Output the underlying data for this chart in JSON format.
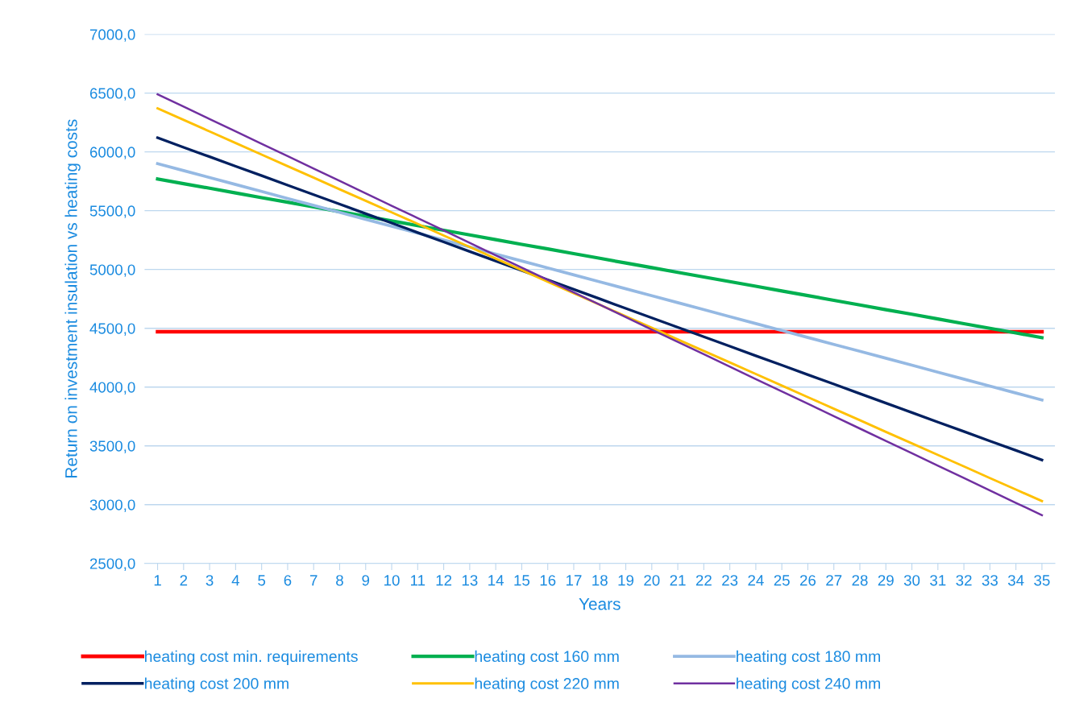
{
  "chart_data": {
    "type": "line",
    "xlabel": "Years",
    "ylabel": "Return on investment insulation vs heating costs",
    "categories": [
      "1",
      "2",
      "3",
      "4",
      "5",
      "6",
      "7",
      "8",
      "9",
      "10",
      "11",
      "12",
      "13",
      "14",
      "15",
      "16",
      "17",
      "18",
      "19",
      "20",
      "21",
      "22",
      "23",
      "24",
      "25",
      "26",
      "27",
      "28",
      "29",
      "30",
      "31",
      "32",
      "33",
      "34",
      "35"
    ],
    "series": [
      {
        "name": "heating cost min. requirements",
        "color": "#ff0000",
        "values": [
          4470,
          4470,
          4470,
          4470,
          4470,
          4470,
          4470,
          4470,
          4470,
          4470,
          4470,
          4470,
          4470,
          4470,
          4470,
          4470,
          4470,
          4470,
          4470,
          4470,
          4470,
          4470,
          4470,
          4470,
          4470,
          4470,
          4470,
          4470,
          4470,
          4470,
          4470,
          4470,
          4470,
          4470,
          4470
        ]
      },
      {
        "name": "heating cost 160 mm",
        "color": "#00b050",
        "values": [
          5770,
          5730,
          5691,
          5651,
          5611,
          5572,
          5532,
          5492,
          5452,
          5413,
          5373,
          5333,
          5294,
          5254,
          5214,
          5175,
          5135,
          5095,
          5055,
          5016,
          4976,
          4936,
          4897,
          4857,
          4817,
          4778,
          4738,
          4698,
          4658,
          4619,
          4579,
          4539,
          4500,
          4460,
          4420
        ]
      },
      {
        "name": "heating cost 180 mm",
        "color": "#95b9e3",
        "values": [
          5900,
          5841,
          5782,
          5723,
          5664,
          5604,
          5545,
          5486,
          5427,
          5368,
          5309,
          5250,
          5191,
          5131,
          5072,
          5013,
          4954,
          4895,
          4836,
          4777,
          4718,
          4659,
          4599,
          4540,
          4481,
          4422,
          4363,
          4304,
          4245,
          4186,
          4126,
          4067,
          4008,
          3949,
          3890
        ]
      },
      {
        "name": "heating cost 200 mm",
        "color": "#002060",
        "values": [
          6120,
          6039,
          5959,
          5878,
          5798,
          5717,
          5636,
          5556,
          5475,
          5395,
          5314,
          5234,
          5153,
          5072,
          4992,
          4911,
          4831,
          4750,
          4669,
          4589,
          4508,
          4428,
          4347,
          4266,
          4186,
          4105,
          4025,
          3944,
          3864,
          3783,
          3702,
          3622,
          3541,
          3461,
          3380
        ]
      },
      {
        "name": "heating cost 220 mm",
        "color": "#ffc000",
        "values": [
          6370,
          6272,
          6174,
          6075,
          5977,
          5879,
          5781,
          5682,
          5584,
          5486,
          5388,
          5289,
          5191,
          5093,
          4995,
          4896,
          4798,
          4700,
          4602,
          4504,
          4405,
          4307,
          4209,
          4111,
          4012,
          3914,
          3816,
          3718,
          3619,
          3521,
          3423,
          3325,
          3226,
          3128,
          3030
        ]
      },
      {
        "name": "heating cost 240 mm",
        "color": "#7030a0",
        "values": [
          6490,
          6385,
          6279,
          6174,
          6069,
          5964,
          5858,
          5753,
          5648,
          5542,
          5437,
          5332,
          5227,
          5121,
          5016,
          4911,
          4805,
          4700,
          4595,
          4489,
          4384,
          4279,
          4174,
          4068,
          3963,
          3858,
          3752,
          3647,
          3542,
          3437,
          3331,
          3226,
          3121,
          3015,
          2910
        ]
      }
    ],
    "ylim": [
      2500,
      7000
    ],
    "yticks": [
      {
        "value": 2500,
        "label": "2500,0"
      },
      {
        "value": 3000,
        "label": "3000,0"
      },
      {
        "value": 3500,
        "label": "3500,0"
      },
      {
        "value": 4000,
        "label": "4000,0"
      },
      {
        "value": 4500,
        "label": "4500,0"
      },
      {
        "value": 5000,
        "label": "5000,0"
      },
      {
        "value": 5500,
        "label": "5500,0"
      },
      {
        "value": 6000,
        "label": "6000,0"
      },
      {
        "value": 6500,
        "label": "6500,0"
      },
      {
        "value": 7000,
        "label": "7000,0"
      }
    ],
    "grid": "y",
    "legend": "bottom",
    "marker": "none",
    "line_style": "solid"
  }
}
